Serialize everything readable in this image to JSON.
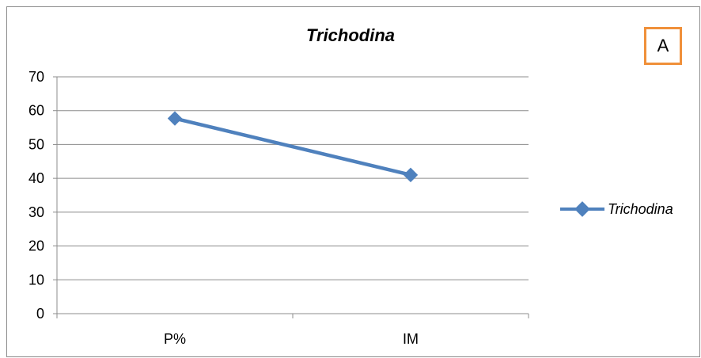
{
  "chart_data": {
    "type": "line",
    "title": "Trichodina",
    "categories": [
      "P%",
      "IM"
    ],
    "series": [
      {
        "name": "Trichodina",
        "values": [
          57.7,
          41.0
        ]
      }
    ],
    "ylim": [
      0,
      70
    ],
    "yticks": [
      0,
      10,
      20,
      30,
      40,
      50,
      60,
      70
    ],
    "grid": true,
    "legend_position": "right",
    "colors": {
      "line": "#4f81bd",
      "grid": "#8c8c8c",
      "badge_border": "#f0903a"
    }
  },
  "panel_label": "A"
}
